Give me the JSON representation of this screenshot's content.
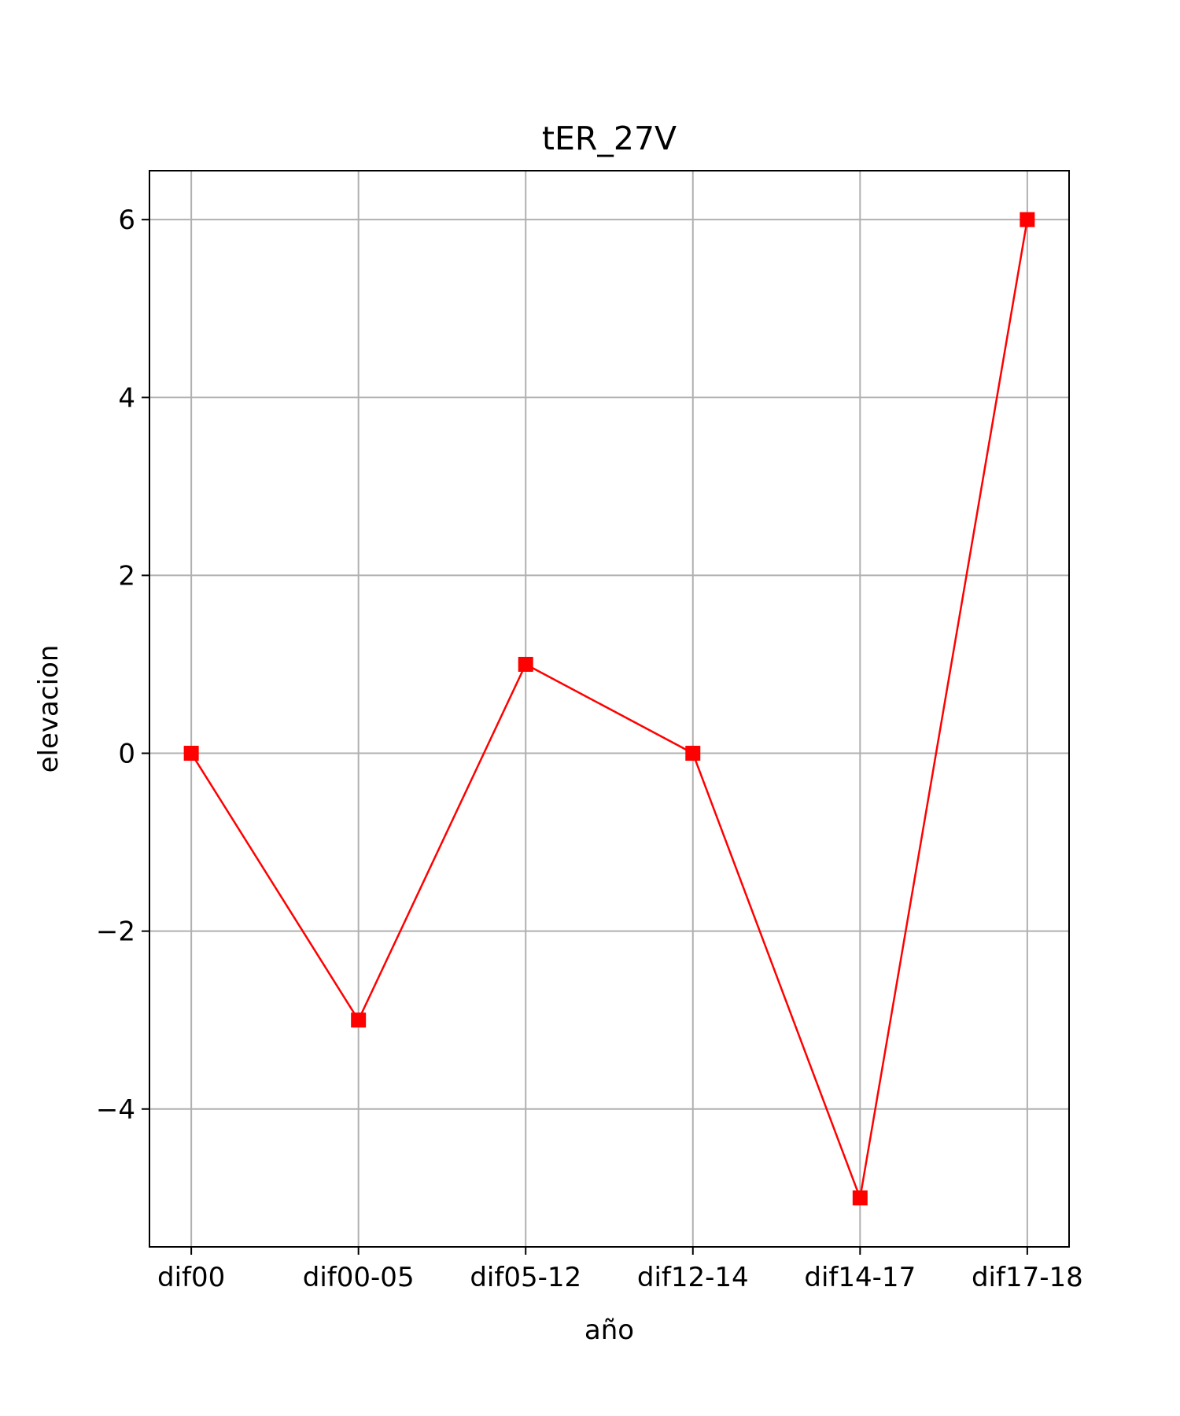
{
  "chart_data": {
    "type": "line",
    "title": "tER_27V",
    "xlabel": "año",
    "ylabel": "elevacion",
    "categories": [
      "dif00",
      "dif00-05",
      "dif05-12",
      "dif12-14",
      "dif14-17",
      "dif17-18"
    ],
    "series": [
      {
        "values": [
          0,
          -3,
          1,
          0,
          -5,
          6
        ],
        "color": "#ff0000",
        "marker": "square"
      }
    ],
    "ylim": [
      -5.55,
      6.55
    ],
    "yticks": [
      -4,
      -2,
      0,
      2,
      4,
      6
    ],
    "ytick_labels": [
      "−4",
      "−2",
      "0",
      "2",
      "4",
      "6"
    ],
    "grid": true,
    "legend": "none"
  }
}
